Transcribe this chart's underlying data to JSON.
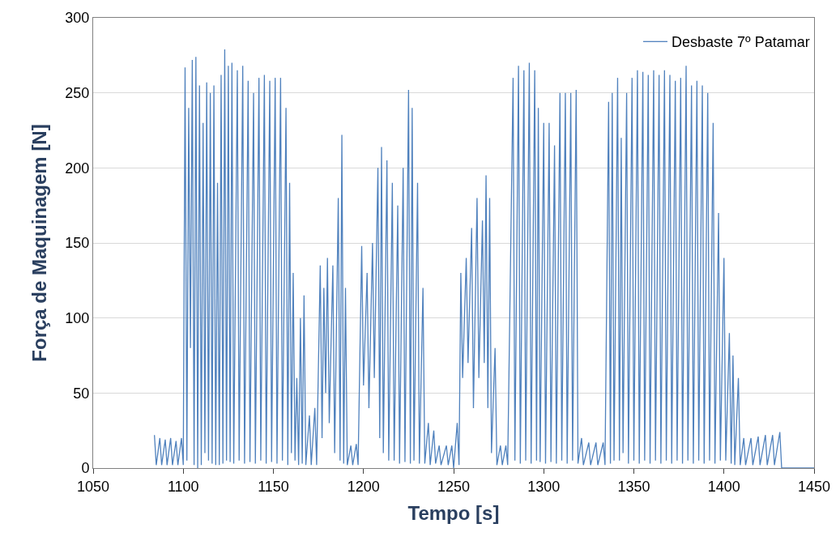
{
  "chart_data": {
    "type": "line",
    "xlabel": "Tempo [s]",
    "ylabel": "Força de Maquinagem [N]",
    "xlim": [
      1050,
      1450
    ],
    "xticks": [
      1050,
      1100,
      1150,
      1200,
      1250,
      1300,
      1350,
      1400,
      1450
    ],
    "ylim": [
      0,
      300
    ],
    "yticks": [
      0,
      50,
      100,
      150,
      200,
      250,
      300
    ],
    "grid": "y",
    "legend": "top right",
    "marker": "none",
    "line_style": "solid",
    "series": [
      {
        "name": "Desbaste 7º Patamar",
        "color": "#4f81bd",
        "x": [
          1084,
          1085,
          1087,
          1088,
          1090,
          1091,
          1093,
          1094,
          1096,
          1097,
          1099,
          1100,
          1101,
          1102,
          1103,
          1104,
          1105,
          1106,
          1107,
          1108,
          1109,
          1110,
          1111,
          1112,
          1113,
          1114,
          1115,
          1116,
          1117,
          1118,
          1119,
          1120,
          1121,
          1122,
          1123,
          1124,
          1125,
          1126,
          1127,
          1128,
          1130,
          1131,
          1133,
          1134,
          1136,
          1137,
          1139,
          1140,
          1142,
          1143,
          1145,
          1146,
          1148,
          1149,
          1151,
          1152,
          1154,
          1155,
          1157,
          1158,
          1159,
          1160,
          1161,
          1162,
          1163,
          1164,
          1165,
          1166,
          1167,
          1168,
          1170,
          1171,
          1173,
          1174,
          1176,
          1177,
          1178,
          1179,
          1180,
          1181,
          1183,
          1184,
          1186,
          1187,
          1188,
          1189,
          1190,
          1191,
          1193,
          1194,
          1196,
          1197,
          1199,
          1200,
          1202,
          1203,
          1205,
          1206,
          1208,
          1209,
          1210,
          1211,
          1213,
          1214,
          1216,
          1217,
          1219,
          1220,
          1222,
          1223,
          1225,
          1226,
          1227,
          1228,
          1230,
          1231,
          1233,
          1234,
          1236,
          1237,
          1239,
          1240,
          1242,
          1243,
          1246,
          1247,
          1249,
          1250,
          1252,
          1253,
          1254,
          1255,
          1257,
          1258,
          1260,
          1261,
          1263,
          1264,
          1266,
          1267,
          1268,
          1269,
          1270,
          1271,
          1273,
          1274,
          1276,
          1277,
          1279,
          1280,
          1283,
          1284,
          1286,
          1287,
          1289,
          1290,
          1292,
          1293,
          1295,
          1296,
          1297,
          1298,
          1300,
          1301,
          1303,
          1304,
          1306,
          1307,
          1309,
          1310,
          1312,
          1313,
          1315,
          1316,
          1318,
          1319,
          1321,
          1322,
          1325,
          1326,
          1329,
          1330,
          1333,
          1334,
          1336,
          1337,
          1338,
          1339,
          1341,
          1342,
          1343,
          1344,
          1346,
          1347,
          1349,
          1350,
          1352,
          1353,
          1355,
          1356,
          1358,
          1359,
          1361,
          1362,
          1364,
          1365,
          1367,
          1368,
          1370,
          1371,
          1373,
          1374,
          1376,
          1377,
          1379,
          1380,
          1382,
          1383,
          1385,
          1386,
          1388,
          1389,
          1391,
          1392,
          1394,
          1395,
          1397,
          1398,
          1400,
          1401,
          1403,
          1404,
          1405,
          1406,
          1408,
          1409,
          1411,
          1412,
          1415,
          1416,
          1419,
          1420,
          1423,
          1424,
          1427,
          1428,
          1431,
          1432,
          1450
        ],
        "values": [
          22,
          2,
          20,
          2,
          19,
          2,
          20,
          2,
          18,
          2,
          20,
          2,
          267,
          5,
          240,
          80,
          272,
          2,
          274,
          0,
          255,
          2,
          230,
          10,
          257,
          5,
          250,
          3,
          255,
          2,
          190,
          2,
          262,
          3,
          279,
          5,
          268,
          4,
          270,
          3,
          265,
          5,
          268,
          3,
          258,
          4,
          250,
          3,
          260,
          5,
          262,
          3,
          258,
          4,
          260,
          3,
          260,
          5,
          240,
          2,
          190,
          10,
          130,
          5,
          60,
          2,
          100,
          3,
          115,
          2,
          35,
          2,
          40,
          2,
          135,
          20,
          120,
          50,
          140,
          30,
          135,
          10,
          180,
          5,
          222,
          3,
          120,
          2,
          15,
          2,
          16,
          2,
          148,
          55,
          130,
          40,
          150,
          60,
          200,
          20,
          214,
          10,
          205,
          5,
          190,
          5,
          175,
          3,
          200,
          4,
          252,
          3,
          240,
          5,
          190,
          3,
          120,
          3,
          30,
          2,
          25,
          3,
          15,
          2,
          15,
          2,
          15,
          0,
          30,
          2,
          130,
          60,
          140,
          70,
          160,
          40,
          180,
          60,
          165,
          70,
          195,
          40,
          180,
          10,
          80,
          2,
          15,
          2,
          15,
          2,
          260,
          5,
          268,
          3,
          265,
          5,
          270,
          3,
          265,
          5,
          240,
          4,
          230,
          3,
          230,
          4,
          215,
          3,
          250,
          5,
          250,
          3,
          250,
          5,
          252,
          3,
          20,
          2,
          17,
          2,
          17,
          2,
          17,
          2,
          244,
          3,
          250,
          5,
          260,
          5,
          220,
          10,
          250,
          3,
          260,
          5,
          265,
          3,
          264,
          5,
          262,
          3,
          265,
          5,
          262,
          3,
          265,
          5,
          262,
          3,
          258,
          5,
          260,
          3,
          268,
          5,
          255,
          3,
          258,
          5,
          255,
          3,
          250,
          5,
          230,
          3,
          170,
          5,
          140,
          5,
          90,
          3,
          75,
          2,
          60,
          2,
          20,
          2,
          20,
          2,
          21,
          2,
          22,
          2,
          22,
          2,
          24,
          0,
          0
        ]
      }
    ]
  }
}
